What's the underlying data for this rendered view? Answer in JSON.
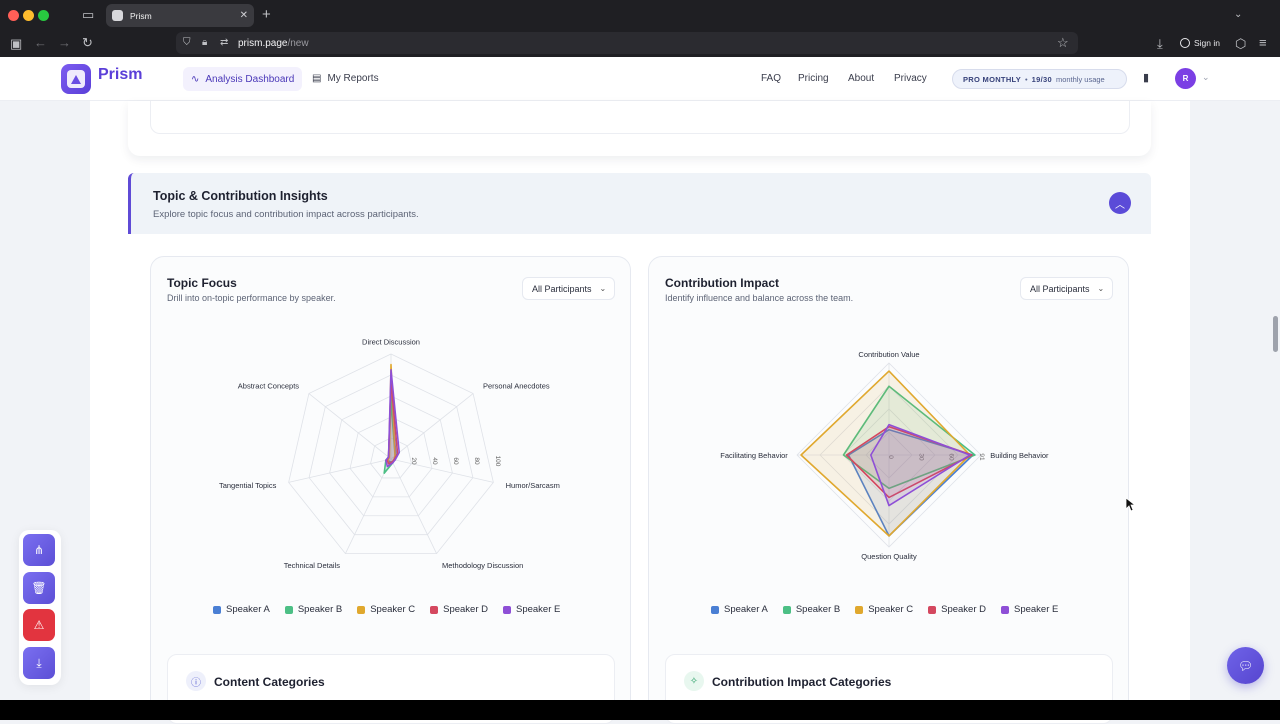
{
  "browser": {
    "tab_title": "Prism",
    "url_host": "prism.page",
    "url_path": "/new",
    "signin_label": "Sign in"
  },
  "header": {
    "brand": "Prism",
    "nav_active": "Analysis Dashboard",
    "nav_reports": "My Reports",
    "links": [
      "FAQ",
      "Pricing",
      "About",
      "Privacy"
    ],
    "plan": "PRO MONTHLY",
    "usage_count": "19/30",
    "usage_suffix": "monthly usage",
    "avatar_initial": "R"
  },
  "section": {
    "title": "Topic & Contribution Insights",
    "subtitle": "Explore topic focus and contribution impact across participants."
  },
  "topic_panel": {
    "title": "Topic Focus",
    "subtitle": "Drill into on-topic performance by speaker.",
    "filter": "All Participants",
    "card_title": "Content Categories"
  },
  "impact_panel": {
    "title": "Contribution Impact",
    "subtitle": "Identify influence and balance across the team.",
    "filter": "All Participants",
    "card_title": "Contribution Impact Categories"
  },
  "speakers": [
    {
      "name": "Speaker A",
      "color": "#4a7fd4"
    },
    {
      "name": "Speaker B",
      "color": "#4cbf85"
    },
    {
      "name": "Speaker C",
      "color": "#e0a82e"
    },
    {
      "name": "Speaker D",
      "color": "#d4485f"
    },
    {
      "name": "Speaker E",
      "color": "#8e4fd6"
    }
  ],
  "chart_data": [
    {
      "type": "radar",
      "axes": [
        "Direct Discussion",
        "Personal Anecdotes",
        "Humor/Sarcasm",
        "Methodology Discussion",
        "Technical Details",
        "Tangential Topics",
        "Abstract Concepts"
      ],
      "tick_labels": [
        "20",
        "40",
        "60",
        "80",
        "100"
      ],
      "range": [
        0,
        100
      ],
      "series": [
        {
          "name": "Speaker A",
          "values": [
            60,
            6,
            4,
            3,
            3,
            3,
            3
          ]
        },
        {
          "name": "Speaker B",
          "values": [
            55,
            5,
            3,
            4,
            15,
            5,
            3
          ]
        },
        {
          "name": "Speaker C",
          "values": [
            90,
            5,
            3,
            3,
            5,
            3,
            2
          ]
        },
        {
          "name": "Speaker D",
          "values": [
            75,
            8,
            3,
            3,
            5,
            4,
            3
          ]
        },
        {
          "name": "Speaker E",
          "values": [
            85,
            10,
            4,
            4,
            8,
            5,
            3
          ]
        }
      ]
    },
    {
      "type": "radar",
      "axes": [
        "Contribution Value",
        "Building Behavior",
        "Question Quality",
        "Facilitating Behavior"
      ],
      "tick_labels": [
        "0",
        "30",
        "60",
        "91"
      ],
      "range": [
        0,
        91
      ],
      "series": [
        {
          "name": "Speaker A",
          "values": [
            25,
            83,
            80,
            40
          ]
        },
        {
          "name": "Speaker B",
          "values": [
            68,
            85,
            33,
            45
          ]
        },
        {
          "name": "Speaker C",
          "values": [
            83,
            80,
            80,
            87
          ]
        },
        {
          "name": "Speaker D",
          "values": [
            28,
            82,
            42,
            42
          ]
        },
        {
          "name": "Speaker E",
          "values": [
            30,
            80,
            50,
            18
          ]
        }
      ]
    }
  ]
}
